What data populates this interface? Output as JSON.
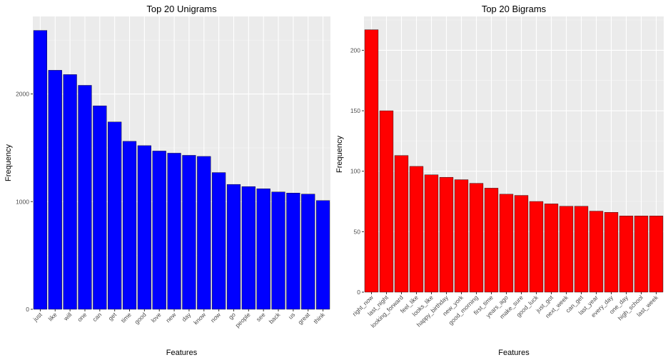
{
  "chart_data": [
    {
      "type": "bar",
      "title": "Top 20 Unigrams",
      "xlabel": "Features",
      "ylabel": "Frequency",
      "categories": [
        "just",
        "like",
        "will",
        "one",
        "can",
        "get",
        "time",
        "good",
        "love",
        "new",
        "day",
        "know",
        "now",
        "go",
        "people",
        "see",
        "back",
        "us",
        "great",
        "think"
      ],
      "values": [
        2590,
        2220,
        2180,
        2080,
        1890,
        1740,
        1560,
        1520,
        1470,
        1450,
        1430,
        1420,
        1270,
        1160,
        1140,
        1120,
        1090,
        1080,
        1070,
        1010
      ],
      "yticks": [
        0,
        1000,
        2000
      ],
      "ylim": [
        0,
        2720
      ],
      "bar_color": "#0000ff",
      "grid": true
    },
    {
      "type": "bar",
      "title": "Top 20 Bigrams",
      "xlabel": "Features",
      "ylabel": "Frequency",
      "categories": [
        "right_now",
        "last_night",
        "looking_forward",
        "feel_like",
        "looks_like",
        "happy_birthday",
        "new_york",
        "good_morning",
        "first_time",
        "years_ago",
        "make_sure",
        "good_luck",
        "just_got",
        "next_week",
        "can_get",
        "last_year",
        "every_day",
        "one_day",
        "high_school",
        "last_week"
      ],
      "values": [
        217,
        150,
        113,
        104,
        97,
        95,
        93,
        90,
        86,
        81,
        80,
        75,
        73,
        71,
        71,
        67,
        66,
        63,
        63,
        63
      ],
      "yticks": [
        0,
        50,
        100,
        150,
        200
      ],
      "ylim": [
        0,
        228
      ],
      "bar_color": "#ff0000",
      "grid": true
    }
  ]
}
